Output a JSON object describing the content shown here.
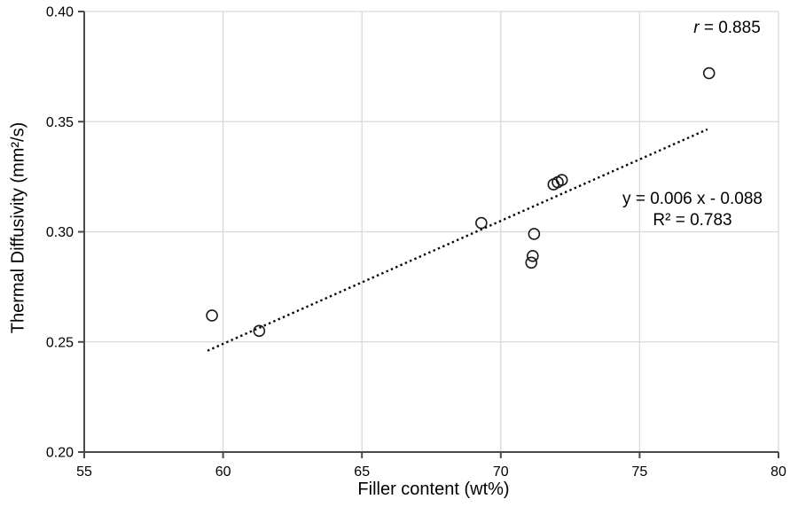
{
  "chart_data": {
    "type": "scatter",
    "title": "",
    "xlabel": "Filler content (wt%)",
    "ylabel": "Thermal Diffusivity (mm²/s)",
    "xlim": [
      55,
      80
    ],
    "ylim": [
      0.2,
      0.4
    ],
    "grid": true,
    "legend": "none",
    "x_ticks": [
      {
        "v": 55,
        "label": "55"
      },
      {
        "v": 60,
        "label": "60"
      },
      {
        "v": 65,
        "label": "65"
      },
      {
        "v": 70,
        "label": "70"
      },
      {
        "v": 75,
        "label": "75"
      },
      {
        "v": 80,
        "label": "80"
      }
    ],
    "y_ticks": [
      {
        "v": 0.2,
        "label": "0.20"
      },
      {
        "v": 0.25,
        "label": "0.25"
      },
      {
        "v": 0.3,
        "label": "0.30"
      },
      {
        "v": 0.35,
        "label": "0.35"
      },
      {
        "v": 0.4,
        "label": "0.40"
      }
    ],
    "points": [
      [
        59.6,
        0.262
      ],
      [
        61.3,
        0.255
      ],
      [
        69.3,
        0.304
      ],
      [
        71.1,
        0.286
      ],
      [
        71.15,
        0.289
      ],
      [
        71.2,
        0.299
      ],
      [
        71.9,
        0.3215
      ],
      [
        72.05,
        0.3225
      ],
      [
        72.2,
        0.3235
      ],
      [
        77.5,
        0.372
      ]
    ],
    "trendline": {
      "style": "dotted",
      "x1": 59.44,
      "y1": 0.246,
      "x2": 77.44,
      "y2": 0.3465,
      "slope_label": "0.006",
      "intercept_label": "-0.088"
    },
    "colors": {
      "gridline": "#d9d9d9",
      "axis": "#4a4a4a",
      "marker_stroke": "#1a1a1a",
      "trendline": "#000000",
      "text": "#000000"
    },
    "marker": {
      "shape": "circle",
      "fill": "none",
      "radius": 6
    }
  },
  "annotations": {
    "r_symbol": "r",
    "r_rest": " = 0.885",
    "equation": "y = 0.006 x - 0.088",
    "r_squared": "R² = 0.783"
  },
  "axis_titles": {
    "x": "Filler content (wt%)",
    "y": "Thermal Diffusivity (mm²/s)"
  }
}
